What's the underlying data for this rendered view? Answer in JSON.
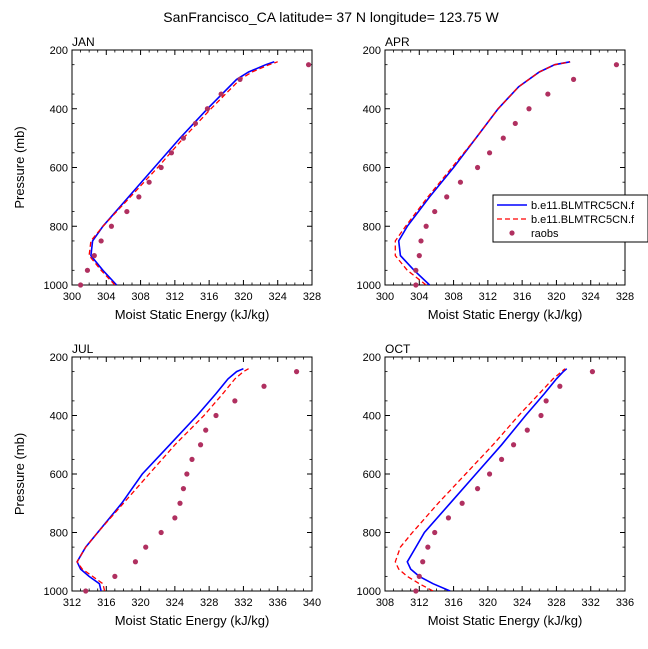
{
  "suptitle": "SanFrancisco_CA  latitude= 37 N longitude= 123.75 W",
  "colors": {
    "model1": "#0000ff",
    "model2": "#ff0000",
    "raobs": "#b03060",
    "axis": "#000000"
  },
  "legend": {
    "entries": [
      {
        "label": "b.e11.BLMTRC5CN.f",
        "style": "solid",
        "color": "#0000ff"
      },
      {
        "label": "b.e11.BLMTRC5CN.f",
        "style": "dashed",
        "color": "#ff0000"
      },
      {
        "label": "raobs",
        "style": "marker",
        "color": "#b03060"
      }
    ]
  },
  "chart_data": [
    {
      "type": "line",
      "title": "JAN",
      "xlabel": "Moist Static Energy (kJ/kg)",
      "ylabel": "Pressure (mb)",
      "xlim": [
        300,
        328
      ],
      "ylim": [
        1000,
        200
      ],
      "xticks": [
        300,
        304,
        308,
        312,
        316,
        320,
        324,
        328
      ],
      "yticks": [
        200,
        400,
        600,
        800,
        1000
      ],
      "series": [
        {
          "name": "b.e11.BLMTRC5CN.f (solid)",
          "pressure": [
            1000,
            950,
            900,
            850,
            800,
            700,
            600,
            500,
            400,
            300,
            275,
            250,
            240
          ],
          "mse": [
            305.2,
            303.6,
            302.2,
            302.4,
            303.6,
            306.6,
            309.6,
            312.6,
            315.8,
            319.2,
            320.6,
            322.6,
            323.6
          ]
        },
        {
          "name": "b.e11.BLMTRC5CN.f (dashed)",
          "pressure": [
            1000,
            950,
            900,
            850,
            800,
            700,
            600,
            500,
            400,
            300,
            275,
            250,
            240
          ],
          "mse": [
            305.0,
            303.4,
            302.0,
            302.2,
            303.6,
            306.8,
            310.0,
            313.0,
            316.2,
            319.6,
            321.0,
            323.0,
            324.0
          ]
        },
        {
          "name": "raobs",
          "pressure": [
            1000,
            950,
            900,
            850,
            800,
            750,
            700,
            650,
            600,
            550,
            500,
            450,
            400,
            350,
            300,
            250
          ],
          "mse": [
            301.0,
            301.8,
            302.6,
            303.4,
            304.6,
            306.4,
            307.8,
            309.0,
            310.4,
            311.6,
            313.0,
            314.4,
            315.8,
            317.4,
            319.6,
            327.6
          ]
        }
      ]
    },
    {
      "type": "line",
      "title": "APR",
      "xlabel": "Moist Static Energy (kJ/kg)",
      "ylabel": "Pressure (mb)",
      "xlim": [
        300,
        328
      ],
      "ylim": [
        1000,
        200
      ],
      "xticks": [
        300,
        304,
        308,
        312,
        316,
        320,
        324,
        328
      ],
      "yticks": [
        200,
        400,
        600,
        800,
        1000
      ],
      "series": [
        {
          "name": "b.e11.BLMTRC5CN.f (solid)",
          "pressure": [
            1000,
            950,
            900,
            850,
            800,
            700,
            600,
            500,
            400,
            325,
            275,
            250,
            240
          ],
          "mse": [
            305.2,
            303.4,
            301.8,
            301.6,
            302.6,
            305.2,
            308.0,
            310.6,
            313.2,
            315.6,
            318.0,
            319.8,
            321.6
          ]
        },
        {
          "name": "b.e11.BLMTRC5CN.f (dashed)",
          "pressure": [
            1000,
            950,
            900,
            850,
            800,
            700,
            600,
            500,
            400,
            325,
            275,
            250,
            240
          ],
          "mse": [
            304.8,
            302.6,
            301.2,
            301.2,
            302.4,
            305.0,
            307.8,
            310.6,
            313.2,
            315.6,
            318.0,
            319.8,
            321.6
          ]
        },
        {
          "name": "raobs",
          "pressure": [
            1000,
            950,
            900,
            850,
            800,
            750,
            700,
            650,
            600,
            550,
            500,
            450,
            400,
            350,
            300,
            250
          ],
          "mse": [
            303.6,
            303.6,
            304.0,
            304.2,
            304.8,
            305.8,
            307.2,
            308.8,
            310.8,
            312.2,
            313.8,
            315.2,
            316.8,
            319.0,
            322.0,
            327.0
          ]
        }
      ]
    },
    {
      "type": "line",
      "title": "JUL",
      "xlabel": "Moist Static Energy (kJ/kg)",
      "ylabel": "Pressure (mb)",
      "xlim": [
        312,
        340
      ],
      "ylim": [
        1000,
        200
      ],
      "xticks": [
        312,
        316,
        320,
        324,
        328,
        332,
        336,
        340
      ],
      "yticks": [
        200,
        400,
        600,
        800,
        1000
      ],
      "series": [
        {
          "name": "b.e11.BLMTRC5CN.f (solid)",
          "pressure": [
            1000,
            975,
            950,
            925,
            900,
            850,
            800,
            700,
            600,
            500,
            400,
            325,
            275,
            250,
            240
          ],
          "mse": [
            315.4,
            315.2,
            314.0,
            313.0,
            312.6,
            313.6,
            315.0,
            317.8,
            320.2,
            323.4,
            326.6,
            328.8,
            330.2,
            331.2,
            332.0
          ]
        },
        {
          "name": "b.e11.BLMTRC5CN.f (dashed)",
          "pressure": [
            1000,
            975,
            950,
            925,
            900,
            850,
            800,
            700,
            600,
            500,
            400,
            325,
            275,
            250,
            240
          ],
          "mse": [
            315.8,
            315.6,
            314.4,
            313.2,
            312.6,
            313.6,
            315.0,
            318.0,
            321.0,
            324.0,
            327.4,
            329.6,
            331.0,
            332.0,
            332.6
          ]
        },
        {
          "name": "raobs",
          "pressure": [
            1000,
            950,
            900,
            850,
            800,
            750,
            700,
            650,
            600,
            550,
            500,
            450,
            400,
            350,
            300,
            250
          ],
          "mse": [
            313.6,
            317.0,
            319.4,
            320.6,
            322.4,
            324.0,
            324.6,
            325.0,
            325.4,
            326.0,
            327.0,
            327.6,
            328.8,
            331.0,
            334.4,
            338.2
          ]
        }
      ]
    },
    {
      "type": "line",
      "title": "OCT",
      "xlabel": "Moist Static Energy (kJ/kg)",
      "ylabel": "Pressure (mb)",
      "xlim": [
        308,
        336
      ],
      "ylim": [
        1000,
        200
      ],
      "xticks": [
        308,
        312,
        316,
        320,
        324,
        328,
        332,
        336
      ],
      "yticks": [
        200,
        400,
        600,
        800,
        1000
      ],
      "series": [
        {
          "name": "b.e11.BLMTRC5CN.f (solid)",
          "pressure": [
            1000,
            975,
            950,
            925,
            900,
            850,
            800,
            700,
            600,
            500,
            400,
            325,
            275,
            250,
            240
          ],
          "mse": [
            315.6,
            313.6,
            312.0,
            311.0,
            310.6,
            311.6,
            312.6,
            315.6,
            318.6,
            321.6,
            324.4,
            326.6,
            328.0,
            328.8,
            329.2
          ]
        },
        {
          "name": "b.e11.BLMTRC5CN.f (dashed)",
          "pressure": [
            1000,
            975,
            950,
            925,
            900,
            850,
            800,
            700,
            600,
            500,
            400,
            325,
            275,
            250,
            240
          ],
          "mse": [
            313.6,
            312.0,
            310.6,
            309.6,
            309.2,
            309.8,
            311.2,
            314.2,
            317.4,
            320.6,
            323.6,
            326.0,
            327.6,
            328.6,
            329.0
          ]
        },
        {
          "name": "raobs",
          "pressure": [
            1000,
            950,
            900,
            850,
            800,
            750,
            700,
            650,
            600,
            550,
            500,
            450,
            400,
            350,
            300,
            250
          ],
          "mse": [
            311.6,
            312.0,
            312.4,
            313.0,
            313.8,
            315.4,
            317.0,
            318.8,
            320.2,
            321.6,
            323.0,
            324.6,
            326.2,
            326.8,
            328.4,
            332.2
          ]
        }
      ]
    }
  ]
}
